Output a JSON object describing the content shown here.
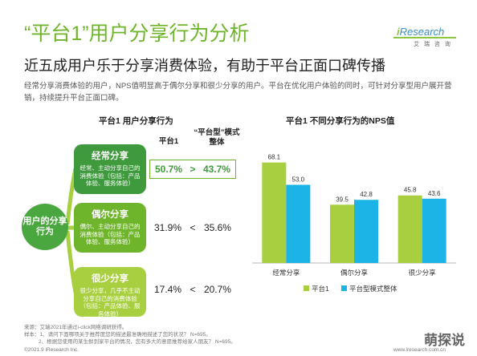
{
  "header": {
    "title": "“平台1”用户分享行为分析",
    "subtitle": "近五成用户乐于分享消费体验，有助于平台正面口碑传播",
    "description": "经常分享消费体验的用户，NPS值明显高于偶尔分享和很少分享的用户。平台在优化用户体验的同时，可针对分享型用户展开营销，持续提升平台正面口碑。"
  },
  "logo": {
    "mark": "i",
    "name": "Research",
    "sub": "艾 瑞 咨 询"
  },
  "left_panel": {
    "title": "平台1 用户分享行为",
    "center_label": "用户的分享行为",
    "col_platform": "平台1",
    "col_overall": "“平台型”模式整体",
    "rows": [
      {
        "name": "经常分享",
        "desc": "经常、主动分享自己的消费体验（包括：产品体验、服务体验）",
        "platform": "50.7%",
        "symbol": ">",
        "overall": "43.7%"
      },
      {
        "name": "偶尔分享",
        "desc": "偶尔、主动分享自己的消费体验（包括：产品体验、服务体验）",
        "platform": "31.9%",
        "symbol": "<",
        "overall": "35.6%"
      },
      {
        "name": "很少分享",
        "desc": "很少分享，几乎不主动分享自己的消费体验（包括：产品体验、服务体验）",
        "platform": "17.4%",
        "symbol": "<",
        "overall": "20.7%"
      }
    ]
  },
  "chart_data": {
    "type": "bar",
    "title": "平台1 不同分享行为的NPS值",
    "categories": [
      "经常分享",
      "偶尔分享",
      "很少分享"
    ],
    "series": [
      {
        "name": "平台1",
        "values": [
          68.1,
          39.5,
          45.8
        ],
        "color": "#a8cf3f"
      },
      {
        "name": "平台型模式整体",
        "values": [
          53.0,
          42.8,
          43.6
        ],
        "color": "#1cb3e6"
      }
    ],
    "ylim": [
      0,
      75
    ],
    "legend": "bottom"
  },
  "footer": {
    "source": "来源：艾瑞2021年通过i-click网络调研获得。",
    "note1": "样本：1、请问下面哪项关于推荐度您的描述最准确地描述了您的状况？ N=695。",
    "note2": "2、根据您使用的某生鲜到家平台的情况，您有多大的意愿推荐给家人朋友？ N=695。",
    "copyright": "©2021.9 iResearch Inc.",
    "site": "www.iresearch.com.cn",
    "watermark": "萌探说"
  }
}
